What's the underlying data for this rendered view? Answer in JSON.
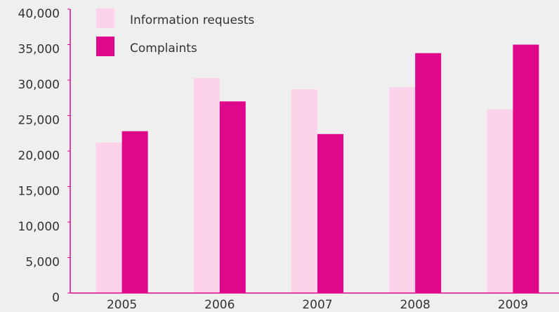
{
  "chart_data": {
    "type": "bar",
    "categories": [
      "2005",
      "2006",
      "2007",
      "2008",
      "2009"
    ],
    "series": [
      {
        "name": "Information requests",
        "color": "#fcd3e8",
        "values": [
          21200,
          30300,
          28700,
          29000,
          25900
        ]
      },
      {
        "name": "Complaints",
        "color": "#e0088a",
        "values": [
          22800,
          27000,
          22400,
          33800,
          35000
        ]
      }
    ],
    "ylim": [
      0,
      40000
    ],
    "yticks": [
      0,
      {
        "value": 5000,
        "label": "5,000"
      },
      {
        "value": 10000,
        "label": "10,000"
      },
      {
        "value": 15000,
        "label": "15,000"
      },
      {
        "value": 20000,
        "label": "20,000"
      },
      {
        "value": 25000,
        "label": "25,000"
      },
      {
        "value": 30000,
        "label": "30,000"
      },
      {
        "value": 35000,
        "label": "35,000"
      },
      {
        "value": 40000,
        "label": "40,000"
      }
    ],
    "legend": "top-left"
  }
}
